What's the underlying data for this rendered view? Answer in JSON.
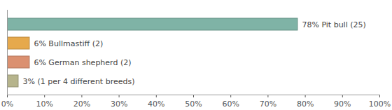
{
  "chart_data": {
    "type": "bar",
    "orientation": "horizontal",
    "categories": [
      null,
      null,
      null,
      null
    ],
    "values": [
      78,
      6,
      6,
      3
    ],
    "value_labels": [
      "78% Pit bull (25)",
      "6% Bullmastiff (2)",
      "6% German shepherd (2)",
      "3% (1 per 4 different breeds)"
    ],
    "colors": [
      "#7fb3a6",
      "#e6a94c",
      "#db9070",
      "#b6b48c"
    ],
    "xlim": [
      0,
      100
    ],
    "xticks": [
      {
        "value": 0,
        "label": "0%"
      },
      {
        "value": 10,
        "label": "10%"
      },
      {
        "value": 20,
        "label": "20%"
      },
      {
        "value": 30,
        "label": "30%"
      },
      {
        "value": 40,
        "label": "40%"
      },
      {
        "value": 50,
        "label": "50%"
      },
      {
        "value": 60,
        "label": "60%"
      },
      {
        "value": 70,
        "label": "70%"
      },
      {
        "value": 80,
        "label": "80%"
      },
      {
        "value": 90,
        "label": "90%"
      },
      {
        "value": 100,
        "label": "100%"
      }
    ],
    "grid": false,
    "data_labels": true,
    "tick_labels": "x"
  }
}
